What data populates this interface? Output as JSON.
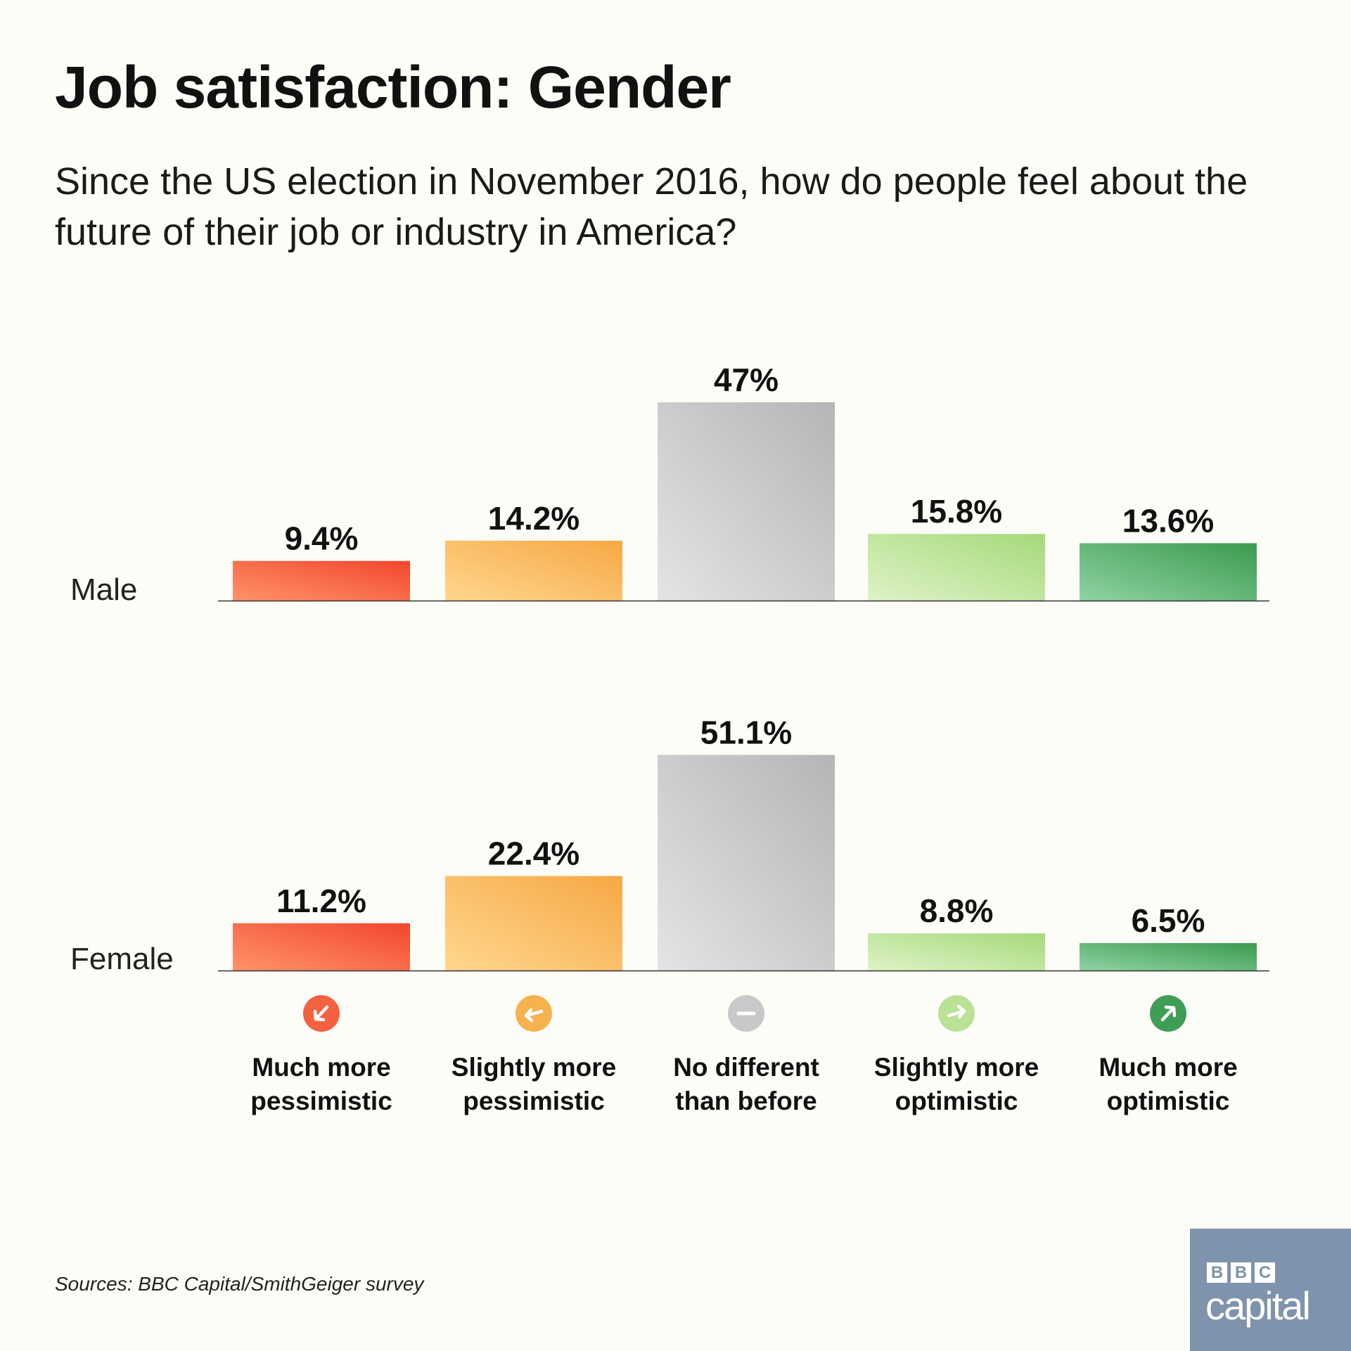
{
  "title": "Job satisfaction: Gender",
  "subtitle": "Since the US election in November 2016, how do people feel about the future of their job or industry in America?",
  "source": "Sources: BBC Capital/SmithGeiger survey",
  "logo": {
    "letters": [
      "B",
      "B",
      "C"
    ],
    "word": "capital"
  },
  "chart_data": {
    "type": "bar",
    "categories": [
      "Much more pessimistic",
      "Slightly more pessimistic",
      "No different than before",
      "Slightly more optimistic",
      "Much more optimistic"
    ],
    "category_lines": [
      [
        "Much more",
        "pessimistic"
      ],
      [
        "Slightly more",
        "pessimistic"
      ],
      [
        "No different",
        "than before"
      ],
      [
        "Slightly more",
        "optimistic"
      ],
      [
        "Much more",
        "optimistic"
      ]
    ],
    "category_icons": [
      "arrow-down-left-icon",
      "arrow-left-icon",
      "minus-icon",
      "arrow-right-icon",
      "arrow-up-right-icon"
    ],
    "category_colors": [
      "#f4613f",
      "#f6b24e",
      "#c9c9c9",
      "#b9e295",
      "#3f9e55"
    ],
    "series": [
      {
        "name": "Male",
        "values": [
          9.4,
          14.2,
          47,
          15.8,
          13.6
        ],
        "labels": [
          "9.4%",
          "14.2%",
          "47%",
          "15.8%",
          "13.6%"
        ]
      },
      {
        "name": "Female",
        "values": [
          11.2,
          22.4,
          51.1,
          8.8,
          6.5
        ],
        "labels": [
          "11.2%",
          "22.4%",
          "51.1%",
          "8.8%",
          "6.5%"
        ]
      }
    ],
    "unit": "%",
    "grid": false,
    "legend": "none"
  }
}
